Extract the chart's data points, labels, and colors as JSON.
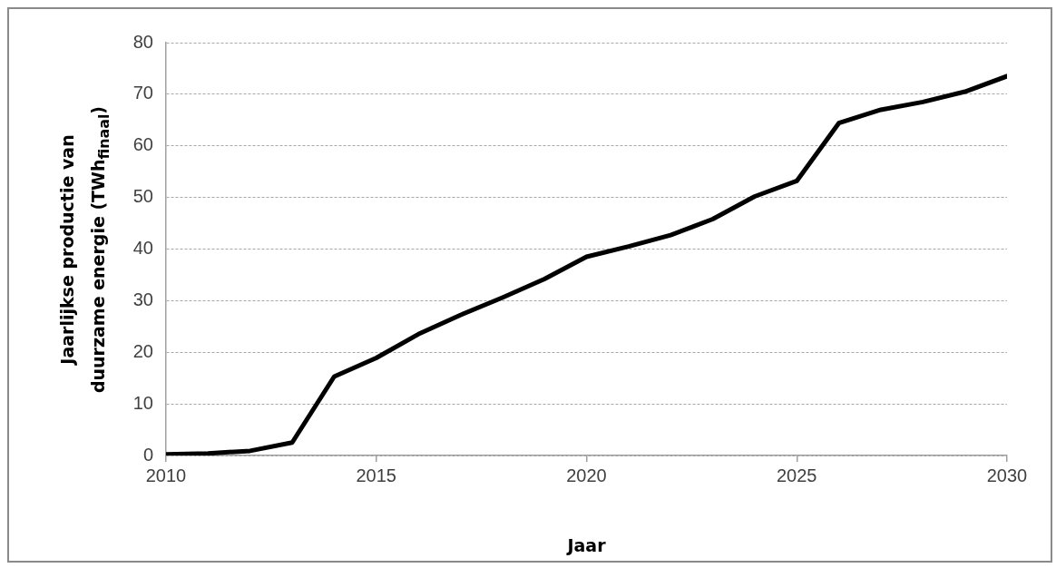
{
  "chart_data": {
    "type": "line",
    "xlabel": "Jaar",
    "ylabel": "Jaarlijkse productie van duurzame energie (TWh$_{finaal}$)",
    "x": [
      2010,
      2011,
      2012,
      2013,
      2014,
      2015,
      2016,
      2017,
      2018,
      2019,
      2020,
      2021,
      2022,
      2023,
      2024,
      2025,
      2026,
      2027,
      2028,
      2029,
      2030
    ],
    "series": [
      {
        "color": "#000000",
        "values": [
          0.2,
          0.4,
          0.9,
          2.5,
          15.3,
          18.9,
          23.5,
          27.2,
          30.6,
          34.2,
          38.5,
          40.5,
          42.7,
          45.8,
          50.2,
          53.2,
          64.4,
          67.0,
          68.5,
          70.5,
          73.5
        ]
      }
    ],
    "xlim": [
      2010,
      2030
    ],
    "xticks": [
      2010,
      2015,
      2020,
      2025,
      2030
    ],
    "ylim": [
      0,
      80
    ],
    "yticks": [
      0,
      10,
      20,
      30,
      40,
      50,
      60,
      70,
      80
    ],
    "grid": "y",
    "legend": false,
    "marker": "none",
    "line_style": "solid"
  }
}
